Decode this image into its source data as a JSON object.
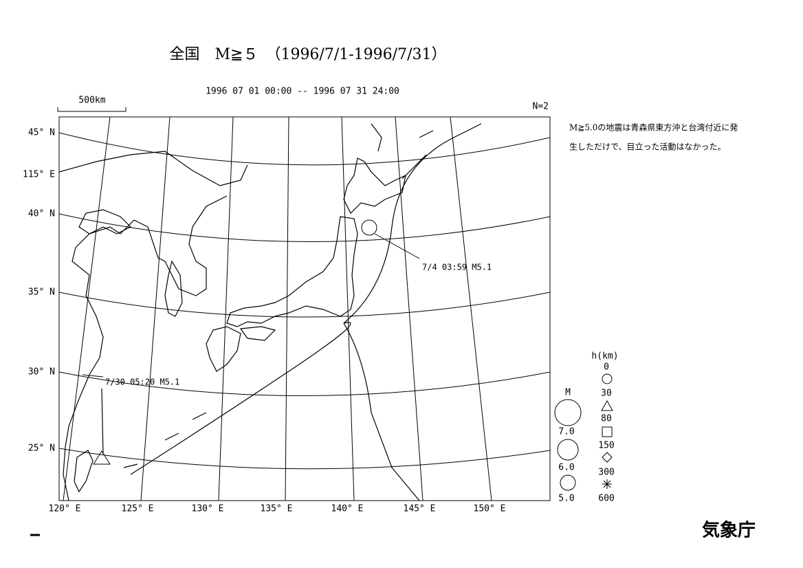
{
  "header": {
    "title": "全国　M≧５　（1996/7/1-1996/7/31）",
    "period": "1996 07 01 00:00 -- 1996 07 31 24:00",
    "scale": "500km",
    "count": "N=2"
  },
  "note": [
    "M≧5.0の地震は青森県東方沖と台湾付近に発",
    "生しただけで、目立った活動はなかった。"
  ],
  "latitudes": [
    "45° N",
    "40° N",
    "35° N",
    "30° N",
    "25° N"
  ],
  "meridian_label": "115° E",
  "longitudes": [
    "120° E",
    "125° E",
    "130° E",
    "135° E",
    "140° E",
    "145° E",
    "150° E"
  ],
  "events": [
    "7/4 03:59 M5.1",
    "7/30 05:20 M5.1"
  ],
  "legend": {
    "depth_title": "h(km)",
    "depths": [
      "0",
      "30",
      "80",
      "150",
      "300",
      "600"
    ],
    "magnitude_title": "M",
    "magnitudes": [
      "7.0",
      "6.0",
      "5.0"
    ]
  },
  "footer": "気象庁"
}
